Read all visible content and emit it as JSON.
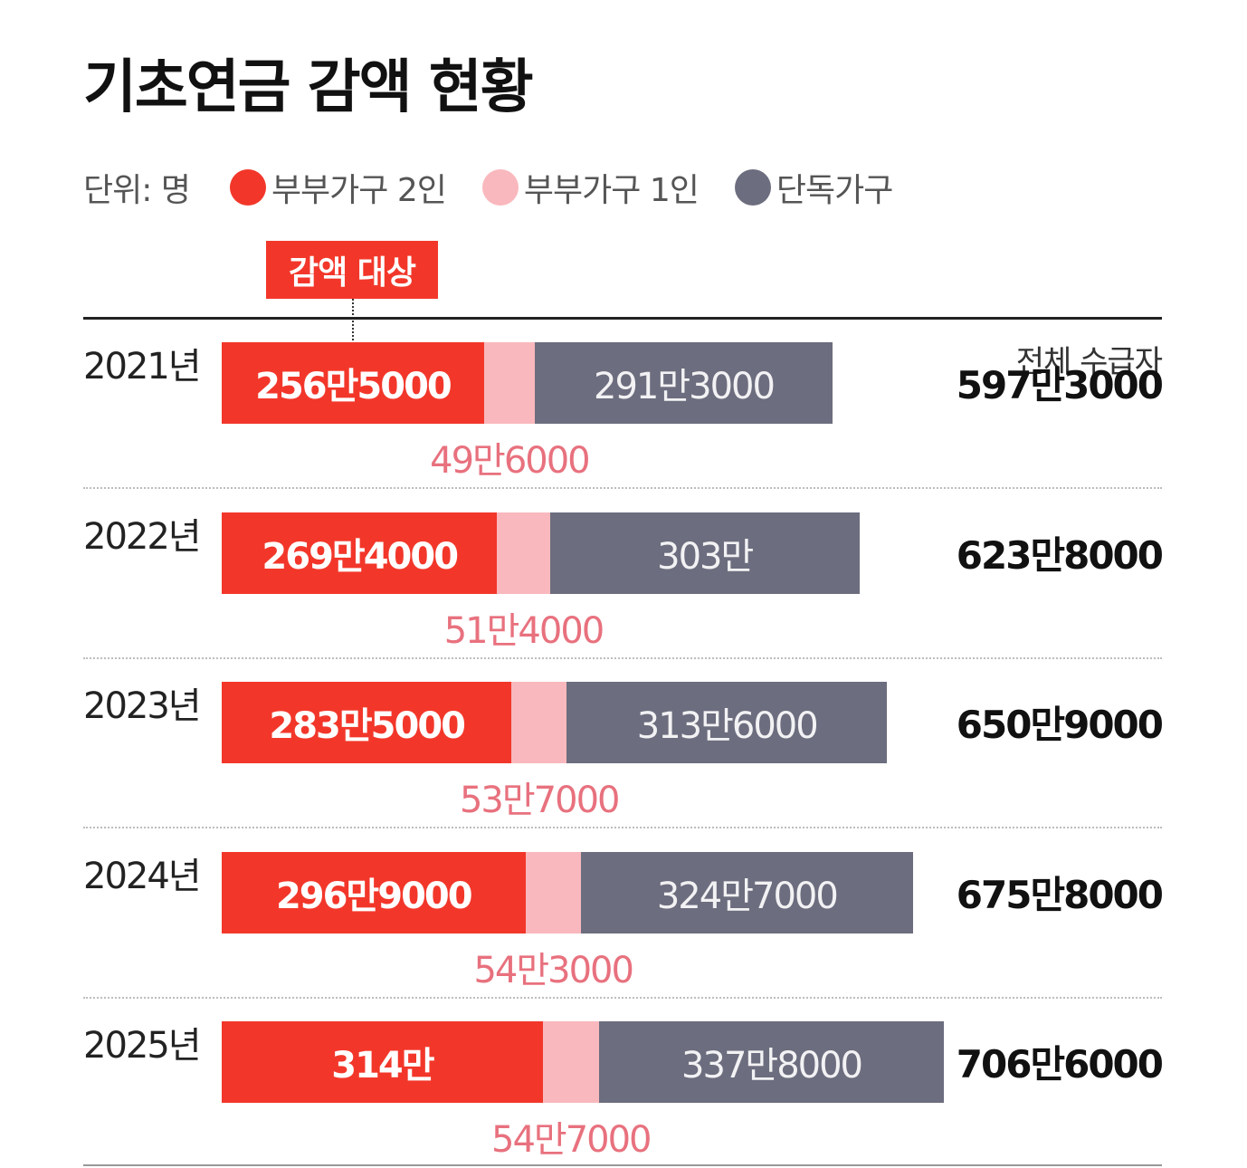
{
  "title": "기초연금 감액 현황",
  "legend": {
    "unit": "단위: 명",
    "items": [
      {
        "label": "부부가구 2인",
        "color": "#f2372a"
      },
      {
        "label": "부부가구 1인",
        "color": "#f9b8bd"
      },
      {
        "label": "단독가구",
        "color": "#6c6d7e"
      }
    ]
  },
  "annotation": "감액 대상",
  "total_label": "전체 수급자",
  "chart_data": {
    "type": "bar",
    "orientation": "horizontal",
    "stacked": true,
    "unit": "명",
    "categories": [
      "2021년",
      "2022년",
      "2023년",
      "2024년",
      "2025년"
    ],
    "series": [
      {
        "name": "부부가구 2인",
        "values": [
          2565000,
          2694000,
          2835000,
          2969000,
          3140000
        ],
        "labels": [
          "256만5000",
          "269만4000",
          "283만5000",
          "296만9000",
          "314만"
        ]
      },
      {
        "name": "부부가구 1인",
        "values": [
          496000,
          514000,
          537000,
          543000,
          547000
        ],
        "labels": [
          "49만6000",
          "51만4000",
          "53만7000",
          "54만3000",
          "54만7000"
        ]
      },
      {
        "name": "단독가구",
        "values": [
          2913000,
          3030000,
          3136000,
          3247000,
          3378000
        ],
        "labels": [
          "291만3000",
          "303만",
          "313만6000",
          "324만7000",
          "337만8000"
        ]
      }
    ],
    "totals": {
      "values": [
        5973000,
        6238000,
        6509000,
        6758000,
        7066000
      ],
      "labels": [
        "597만3000",
        "623만8000",
        "650만9000",
        "675만8000",
        "706만6000"
      ]
    }
  }
}
